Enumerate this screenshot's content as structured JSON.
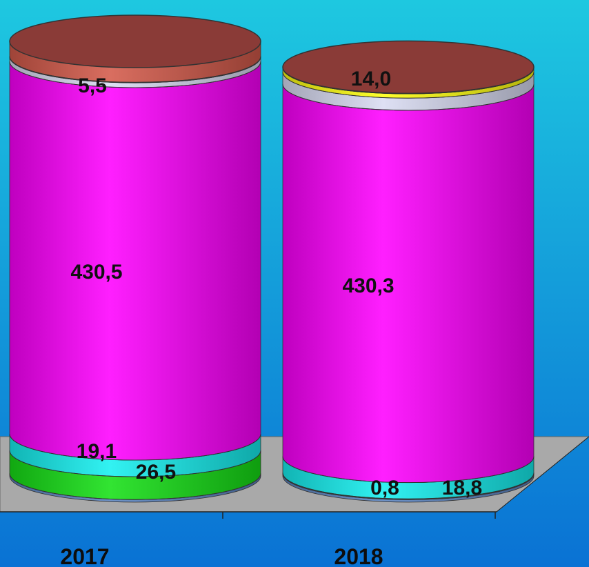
{
  "chart_data": {
    "type": "bar",
    "stacked": true,
    "style": "3d-cylinder",
    "categories": [
      "2017",
      "2018"
    ],
    "series": [
      {
        "values": [
          3,
          3
        ],
        "color": "#5b84c1"
      },
      {
        "values": [
          26.5,
          0.8
        ],
        "color": "#16e016"
      },
      {
        "values": [
          19.1,
          18.8
        ],
        "color": "#16f0f0"
      },
      {
        "values": [
          430.5,
          430.3
        ],
        "color": "#ff00ff"
      },
      {
        "values": [
          5.5,
          14.0
        ],
        "color": "#d9dcf3"
      },
      {
        "values": [
          0.6,
          5
        ],
        "color": "#ffff10"
      },
      {
        "values": [
          17,
          0.5
        ],
        "color": "#d45a4a"
      }
    ],
    "data_labels": {
      "2017": [
        "26,5",
        "19,1",
        "430,5",
        "5,5"
      ],
      "2018": [
        "0,8",
        "18,8",
        "430,3",
        "14,0"
      ]
    },
    "colors": {
      "background_top": "#1ec8e0",
      "background_bottom": "#0a72d4",
      "floor": "#a9a9a9",
      "top_cap": "#8a3b37"
    },
    "legend": "none",
    "grid": false
  }
}
